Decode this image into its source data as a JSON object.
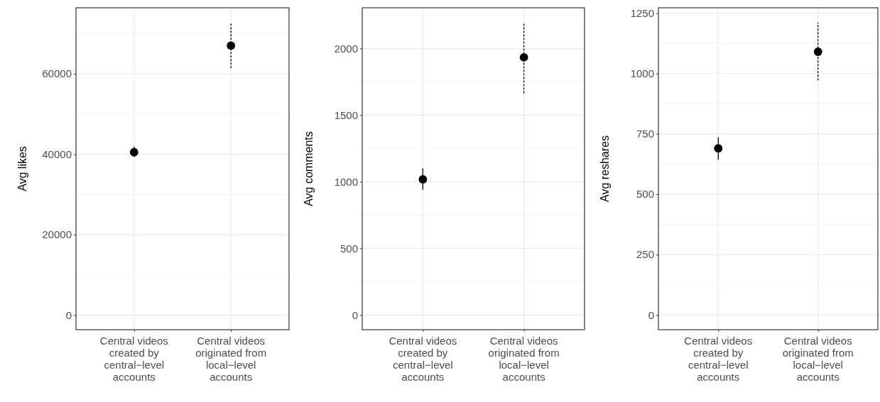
{
  "chart_data": [
    {
      "type": "scatter",
      "ylabel": "Avg likes",
      "categories": [
        "Central videos created by central−level accounts",
        "Central videos originated from local−level accounts"
      ],
      "ylim": [
        -3600,
        76400
      ],
      "yticks": [
        0,
        20000,
        40000,
        60000
      ],
      "grid": true,
      "marker": "circle",
      "series": [
        {
          "color": "#000000",
          "line_style": "solid",
          "values": [
            40500,
            null
          ],
          "errors": [
            [
              39300,
              41900
            ],
            null
          ]
        },
        {
          "color": "#000000",
          "line_style": "dashed",
          "values": [
            null,
            67000
          ],
          "errors": [
            null,
            [
              61400,
              72800
            ]
          ]
        }
      ]
    },
    {
      "type": "scatter",
      "ylabel": "Avg comments",
      "categories": [
        "Central videos created by central−level accounts",
        "Central videos originated from local−level accounts"
      ],
      "ylim": [
        -110,
        2305
      ],
      "yticks": [
        0,
        500,
        1000,
        1500,
        2000
      ],
      "grid": true,
      "marker": "circle",
      "series": [
        {
          "color": "#000000",
          "line_style": "solid",
          "values": [
            1018,
            null
          ],
          "errors": [
            [
              940,
              1100
            ],
            null
          ]
        },
        {
          "color": "#000000",
          "line_style": "dashed",
          "values": [
            null,
            1933
          ],
          "errors": [
            null,
            [
              1664,
              2194
            ]
          ]
        }
      ]
    },
    {
      "type": "scatter",
      "ylabel": "Avg reshares",
      "categories": [
        "Central videos created by central−level accounts",
        "Central videos originated from local−level accounts"
      ],
      "ylim": [
        -61,
        1272
      ],
      "yticks": [
        0,
        250,
        500,
        750,
        1000,
        1250
      ],
      "grid": true,
      "marker": "circle",
      "series": [
        {
          "color": "#000000",
          "line_style": "solid",
          "values": [
            690,
            null
          ],
          "errors": [
            [
              644,
              736
            ],
            null
          ]
        },
        {
          "color": "#000000",
          "line_style": "dashed",
          "values": [
            null,
            1090
          ],
          "errors": [
            null,
            [
              972,
              1211
            ]
          ]
        }
      ]
    }
  ]
}
